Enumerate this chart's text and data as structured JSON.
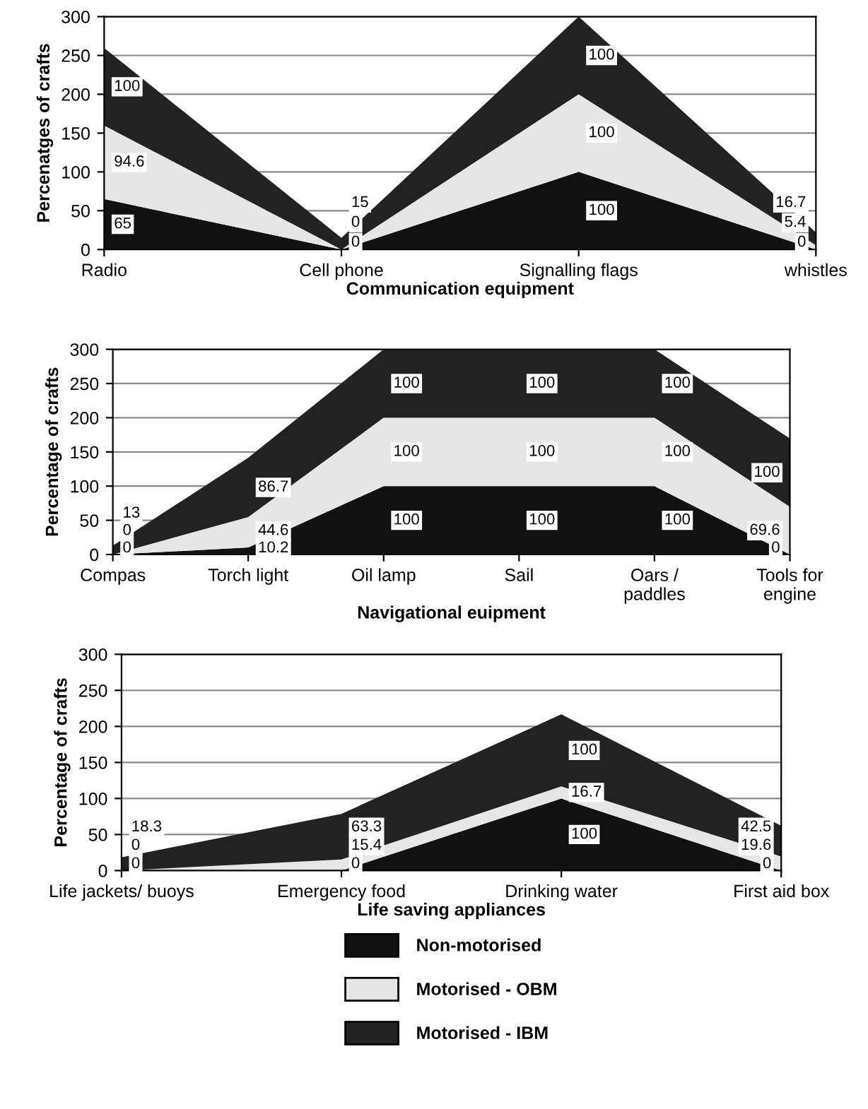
{
  "chart_data": [
    {
      "type": "area",
      "stacked": true,
      "ylabel": "Percenatges of crafts",
      "xlabel": "Communication equipment",
      "categories": [
        "Radio",
        "Cell phone",
        "Signalling flags",
        "whistles"
      ],
      "ylim": [
        0,
        300
      ],
      "yticks": [
        0,
        50,
        100,
        150,
        200,
        250,
        300
      ],
      "grid": "y",
      "data_labels": true,
      "series": [
        {
          "color": "#111111",
          "values": [
            65,
            0,
            100,
            0
          ]
        },
        {
          "color": "#e6e6e6",
          "values": [
            94.6,
            0,
            100,
            5.4
          ]
        },
        {
          "color": "#222222",
          "values": [
            100,
            15,
            100,
            16.7
          ]
        }
      ]
    },
    {
      "type": "area",
      "stacked": true,
      "ylabel": "Percentage of crafts",
      "xlabel": "Navigational euipment",
      "categories": [
        "Compas",
        "Torch light",
        "Oil lamp",
        "Sail",
        "Oars /\npaddles",
        "Tools for\nengine"
      ],
      "ylim": [
        0,
        300
      ],
      "yticks": [
        0,
        50,
        100,
        150,
        200,
        250,
        300
      ],
      "grid": "y",
      "data_labels": true,
      "series": [
        {
          "color": "#111111",
          "values": [
            0,
            10.2,
            100,
            100,
            100,
            0
          ]
        },
        {
          "color": "#e6e6e6",
          "values": [
            0,
            44.6,
            100,
            100,
            100,
            69.6
          ]
        },
        {
          "color": "#222222",
          "values": [
            13,
            86.7,
            100,
            100,
            100,
            100
          ]
        }
      ]
    },
    {
      "type": "area",
      "stacked": true,
      "ylabel": "Percentage of crafts",
      "xlabel": "Life saving appliances",
      "categories": [
        "Life jackets/ buoys",
        "Emergency food",
        "Drinking water",
        "First aid box"
      ],
      "ylim": [
        0,
        300
      ],
      "yticks": [
        0,
        50,
        100,
        150,
        200,
        250,
        300
      ],
      "grid": "y",
      "data_labels": true,
      "legend": "bottom",
      "series": [
        {
          "name": "Non-motorised",
          "color": "#111111",
          "values": [
            0,
            0,
            100,
            0
          ]
        },
        {
          "name": "Motorised - OBM",
          "color": "#e6e6e6",
          "values": [
            0,
            15.4,
            16.7,
            19.6
          ]
        },
        {
          "name": "Motorised - IBM",
          "color": "#222222",
          "values": [
            18.3,
            63.3,
            100,
            42.5
          ]
        }
      ]
    }
  ]
}
